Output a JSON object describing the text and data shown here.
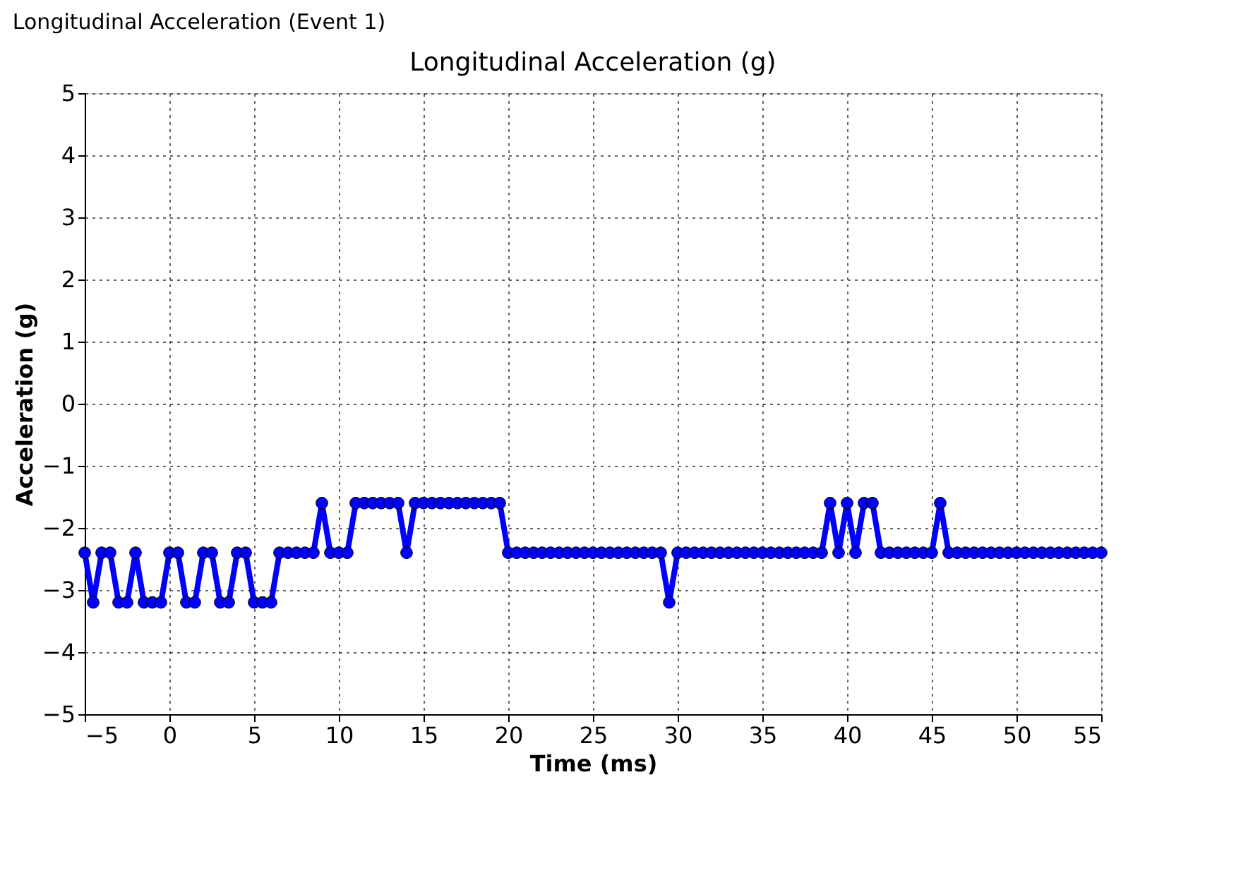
{
  "chart_data": {
    "type": "line",
    "title": "Longitudinal Acceleration (Event 1)",
    "subtitle": "Longitudinal Acceleration (g)",
    "xlabel": "Time (ms)",
    "ylabel": "Acceleration (g)",
    "x": [
      -5,
      -4.5,
      -4,
      -3.5,
      -3,
      -2.5,
      -2,
      -1.5,
      -1,
      -0.5,
      0,
      0.5,
      1,
      1.5,
      2,
      2.5,
      3,
      3.5,
      4,
      4.5,
      5,
      5.5,
      6,
      6.5,
      7,
      7.5,
      8,
      8.5,
      9,
      9.5,
      10,
      10.5,
      11,
      11.5,
      12,
      12.5,
      13,
      13.5,
      14,
      14.5,
      15,
      15.5,
      16,
      16.5,
      17,
      17.5,
      18,
      18.5,
      19,
      19.5,
      20,
      20.5,
      21,
      21.5,
      22,
      22.5,
      23,
      23.5,
      24,
      24.5,
      25,
      25.5,
      26,
      26.5,
      27,
      27.5,
      28,
      28.5,
      29,
      29.5,
      30,
      30.5,
      31,
      31.5,
      32,
      32.5,
      33,
      33.5,
      34,
      34.5,
      35,
      35.5,
      36,
      36.5,
      37,
      37.5,
      38,
      38.5,
      39,
      39.5,
      40,
      40.5,
      41,
      41.5,
      42,
      42.5,
      43,
      43.5,
      44,
      44.5,
      45,
      45.5,
      46,
      46.5,
      47,
      47.5,
      48,
      48.5,
      49,
      49.5,
      50,
      50.5,
      51,
      51.5,
      52,
      52.5,
      53,
      53.5,
      54,
      54.5,
      55
    ],
    "series": [
      {
        "color": "#0000ff",
        "values": [
          -2.4,
          -3.2,
          -2.4,
          -2.4,
          -3.2,
          -3.2,
          -2.4,
          -3.2,
          -3.2,
          -3.2,
          -2.4,
          -2.4,
          -3.2,
          -3.2,
          -2.4,
          -2.4,
          -3.2,
          -3.2,
          -2.4,
          -2.4,
          -3.2,
          -3.2,
          -3.2,
          -2.4,
          -2.4,
          -2.4,
          -2.4,
          -2.4,
          -1.6,
          -2.4,
          -2.4,
          -2.4,
          -1.6,
          -1.6,
          -1.6,
          -1.6,
          -1.6,
          -1.6,
          -2.4,
          -1.6,
          -1.6,
          -1.6,
          -1.6,
          -1.6,
          -1.6,
          -1.6,
          -1.6,
          -1.6,
          -1.6,
          -1.6,
          -2.4,
          -2.4,
          -2.4,
          -2.4,
          -2.4,
          -2.4,
          -2.4,
          -2.4,
          -2.4,
          -2.4,
          -2.4,
          -2.4,
          -2.4,
          -2.4,
          -2.4,
          -2.4,
          -2.4,
          -2.4,
          -2.4,
          -3.2,
          -2.4,
          -2.4,
          -2.4,
          -2.4,
          -2.4,
          -2.4,
          -2.4,
          -2.4,
          -2.4,
          -2.4,
          -2.4,
          -2.4,
          -2.4,
          -2.4,
          -2.4,
          -2.4,
          -2.4,
          -2.4,
          -1.6,
          -2.4,
          -1.6,
          -2.4,
          -1.6,
          -1.6,
          -2.4,
          -2.4,
          -2.4,
          -2.4,
          -2.4,
          -2.4,
          -2.4,
          -1.6,
          -2.4,
          -2.4,
          -2.4,
          -2.4,
          -2.4,
          -2.4,
          -2.4,
          -2.4,
          -2.4,
          -2.4,
          -2.4,
          -2.4,
          -2.4,
          -2.4,
          -2.4,
          -2.4,
          -2.4,
          -2.4,
          -2.4
        ]
      }
    ],
    "xlim": [
      -5,
      55
    ],
    "xticks": [
      -5,
      0,
      5,
      10,
      15,
      20,
      25,
      30,
      35,
      40,
      45,
      50,
      55
    ],
    "ylim": [
      -5,
      5
    ],
    "yticks": [
      -5,
      -4,
      -3,
      -2,
      -1,
      0,
      1,
      2,
      3,
      4,
      5
    ],
    "grid": true,
    "marker": "circle"
  }
}
